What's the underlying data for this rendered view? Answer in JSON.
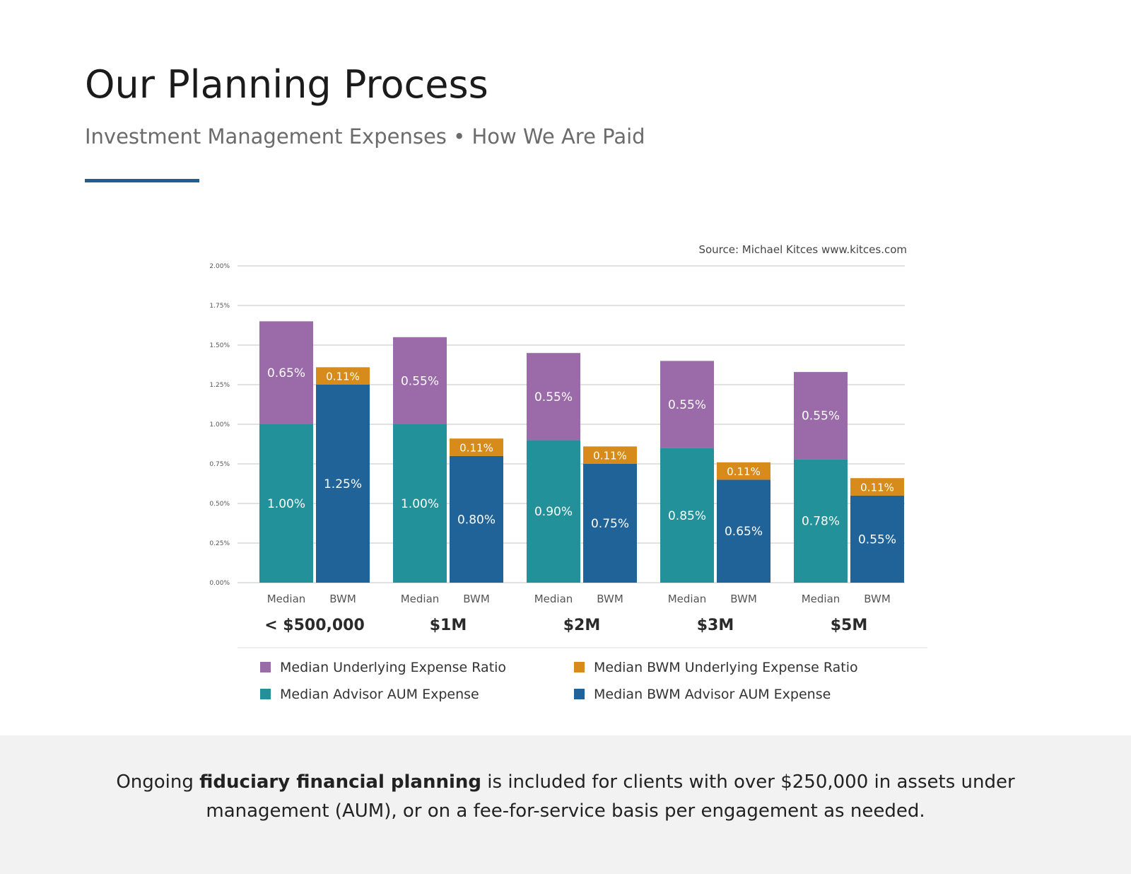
{
  "header": {
    "title": "Our Planning Process",
    "subtitle": "Investment Management Expenses • How We Are Paid"
  },
  "footer": {
    "text_before": "Ongoing ",
    "text_bold": "fiduciary financial planning",
    "text_after": " is included for clients with over $250,000 in assets under management (AUM), or on a fee-for-service basis per engagement as needed."
  },
  "colors": {
    "median_underlying": "#9a6aa9",
    "bwm_underlying": "#d68b1a",
    "median_advisor": "#23919a",
    "bwm_advisor": "#1f6399",
    "grid": "#cfcfcf",
    "accent_rule": "#1f5f99"
  },
  "chart_data": {
    "type": "bar",
    "stacked": true,
    "source": "Source: Michael Kitces www.kitces.com",
    "groups": [
      "< $500,000",
      "$1M",
      "$2M",
      "$3M",
      "$5M"
    ],
    "bar_labels": [
      "Median",
      "BWM"
    ],
    "y_ticks": [
      "0.00%",
      "0.25%",
      "0.50%",
      "0.75%",
      "1.00%",
      "1.25%",
      "1.50%",
      "1.75%",
      "2.00%"
    ],
    "ylim": [
      0,
      2.0
    ],
    "grid": true,
    "legend_position": "bottom",
    "series": [
      {
        "name": "Median Advisor AUM Expense",
        "bar": "Median",
        "stack": "bottom",
        "color_key": "median_advisor",
        "values": [
          1.0,
          1.0,
          0.9,
          0.85,
          0.78
        ],
        "labels": [
          "1.00%",
          "1.00%",
          "0.90%",
          "0.85%",
          "0.78%"
        ]
      },
      {
        "name": "Median Underlying Expense Ratio",
        "bar": "Median",
        "stack": "top",
        "color_key": "median_underlying",
        "values": [
          0.65,
          0.55,
          0.55,
          0.55,
          0.55
        ],
        "labels": [
          "0.65%",
          "0.55%",
          "0.55%",
          "0.55%",
          "0.55%"
        ]
      },
      {
        "name": "Median BWM Advisor AUM Expense",
        "bar": "BWM",
        "stack": "bottom",
        "color_key": "bwm_advisor",
        "values": [
          1.25,
          0.8,
          0.75,
          0.65,
          0.55
        ],
        "labels": [
          "1.25%",
          "0.80%",
          "0.75%",
          "0.65%",
          "0.55%"
        ]
      },
      {
        "name": "Median BWM Underlying Expense Ratio",
        "bar": "BWM",
        "stack": "top",
        "color_key": "bwm_underlying",
        "values": [
          0.11,
          0.11,
          0.11,
          0.11,
          0.11
        ],
        "labels": [
          "0.11%",
          "0.11%",
          "0.11%",
          "0.11%",
          "0.11%"
        ]
      }
    ],
    "legend": [
      {
        "label": "Median Underlying Expense Ratio",
        "color_key": "median_underlying"
      },
      {
        "label": "Median BWM Underlying Expense Ratio",
        "color_key": "bwm_underlying"
      },
      {
        "label": "Median Advisor AUM Expense",
        "color_key": "median_advisor"
      },
      {
        "label": "Median BWM Advisor AUM Expense",
        "color_key": "bwm_advisor"
      }
    ]
  }
}
